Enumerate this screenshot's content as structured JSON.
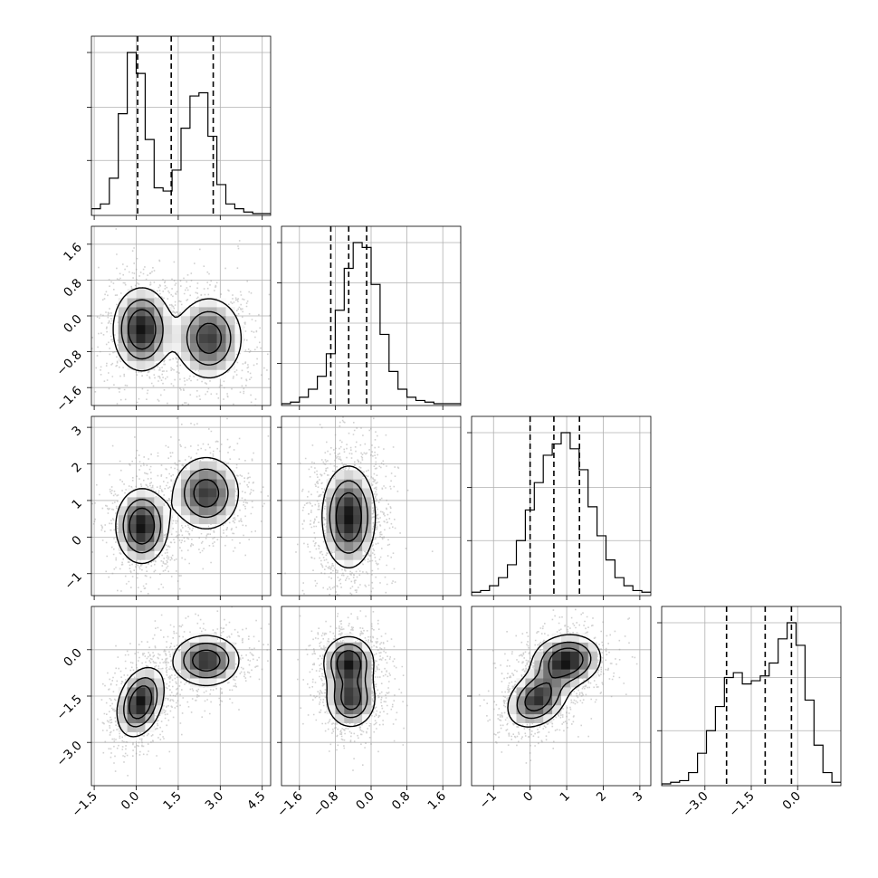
{
  "chart_data": {
    "type": "corner",
    "description_of_layout": "lower-triangular matrix of 1D histograms (diagonal) and 2D density/contour panels (off-diagonal) for 4 parameters",
    "style": {
      "line_color": "#000000",
      "grid_color": "#b0b0b0",
      "point_color": "#9a9a9a",
      "background": "#ffffff"
    },
    "parameters": [
      {
        "range": [
          -1.6,
          4.8
        ],
        "ticks": [
          -1.5,
          0.0,
          1.5,
          3.0,
          4.5
        ],
        "tick_labels": [
          "−1.5",
          "0.0",
          "1.5",
          "3.0",
          "4.5"
        ],
        "quantiles": [
          0.05,
          1.25,
          2.75
        ],
        "hist_edges_start": -1.6,
        "hist_bin_width": 0.32,
        "hist_counts": [
          3,
          6,
          22,
          62,
          100,
          87,
          46,
          16,
          14,
          27,
          53,
          73,
          75,
          48,
          18,
          6,
          3,
          1,
          0,
          0
        ]
      },
      {
        "range": [
          -2.0,
          2.0
        ],
        "ticks": [
          -1.6,
          -0.8,
          0.0,
          0.8,
          1.6
        ],
        "tick_labels": [
          "−1.6",
          "−0.8",
          "0.0",
          "0.8",
          "1.6"
        ],
        "quantiles": [
          -0.9,
          -0.5,
          -0.1
        ],
        "hist_edges_start": -2.0,
        "hist_bin_width": 0.2,
        "hist_counts": [
          0,
          1,
          4,
          9,
          17,
          31,
          58,
          84,
          100,
          97,
          74,
          43,
          20,
          9,
          4,
          2,
          1,
          0,
          0,
          0
        ]
      },
      {
        "range": [
          -1.6,
          3.3
        ],
        "ticks": [
          -1,
          0,
          1,
          2,
          3
        ],
        "tick_labels": [
          "−1",
          "0",
          "1",
          "2",
          "3"
        ],
        "quantiles": [
          0.0,
          0.65,
          1.35
        ],
        "hist_edges_start": -1.6,
        "hist_bin_width": 0.245,
        "hist_counts": [
          1,
          2,
          5,
          10,
          18,
          33,
          52,
          69,
          86,
          93,
          100,
          90,
          77,
          54,
          36,
          21,
          10,
          5,
          2,
          1
        ]
      },
      {
        "range": [
          -4.4,
          1.4
        ],
        "ticks": [
          -3.0,
          -1.5,
          0.0
        ],
        "tick_labels": [
          "−3.0",
          "−1.5",
          "0.0"
        ],
        "quantiles": [
          -2.3,
          -1.05,
          -0.2
        ],
        "hist_edges_start": -4.4,
        "hist_bin_width": 0.29,
        "hist_counts": [
          0,
          1,
          2,
          7,
          19,
          33,
          48,
          66,
          69,
          62,
          64,
          67,
          75,
          90,
          100,
          86,
          52,
          24,
          7,
          1
        ]
      }
    ],
    "diag_hist_ticks": [
      [
        0.33,
        0.66,
        1.0
      ],
      [
        0.25,
        0.5,
        0.75,
        1.0
      ],
      [
        0.33,
        0.66,
        1.0
      ],
      [
        0.33,
        0.66,
        1.0
      ]
    ],
    "pairs": [
      {
        "x": 0,
        "y": 1,
        "modes": [
          {
            "mx": 0.2,
            "my": -0.3,
            "sx": 0.55,
            "sy": 0.5,
            "rho": 0.0,
            "w": 1.0
          },
          {
            "mx": 2.6,
            "my": -0.5,
            "sx": 0.65,
            "sy": 0.5,
            "rho": 0.0,
            "w": 0.85
          }
        ]
      },
      {
        "x": 0,
        "y": 2,
        "modes": [
          {
            "mx": 0.2,
            "my": 0.3,
            "sx": 0.5,
            "sy": 0.55,
            "rho": 0.0,
            "w": 1.0
          },
          {
            "mx": 2.5,
            "my": 1.2,
            "sx": 0.65,
            "sy": 0.55,
            "rho": 0.0,
            "w": 0.85
          }
        ]
      },
      {
        "x": 0,
        "y": 3,
        "modes": [
          {
            "mx": 0.15,
            "my": -1.7,
            "sx": 0.45,
            "sy": 0.6,
            "rho": 0.3,
            "w": 1.0
          },
          {
            "mx": 2.5,
            "my": -0.35,
            "sx": 0.65,
            "sy": 0.45,
            "rho": 0.0,
            "w": 0.9
          }
        ]
      },
      {
        "x": 1,
        "y": 2,
        "modes": [
          {
            "mx": -0.5,
            "my": 0.55,
            "sx": 0.32,
            "sy": 0.75,
            "rho": 0.0,
            "w": 1.0
          }
        ]
      },
      {
        "x": 1,
        "y": 3,
        "modes": [
          {
            "mx": -0.5,
            "my": -0.4,
            "sx": 0.3,
            "sy": 0.45,
            "rho": 0.0,
            "w": 1.0
          },
          {
            "mx": -0.45,
            "my": -1.6,
            "sx": 0.3,
            "sy": 0.5,
            "rho": 0.0,
            "w": 0.9
          }
        ]
      },
      {
        "x": 2,
        "y": 3,
        "modes": [
          {
            "mx": 0.2,
            "my": -1.6,
            "sx": 0.45,
            "sy": 0.5,
            "rho": 0.3,
            "w": 0.9
          },
          {
            "mx": 1.0,
            "my": -0.35,
            "sx": 0.5,
            "sy": 0.45,
            "rho": 0.1,
            "w": 1.0
          }
        ]
      }
    ]
  }
}
